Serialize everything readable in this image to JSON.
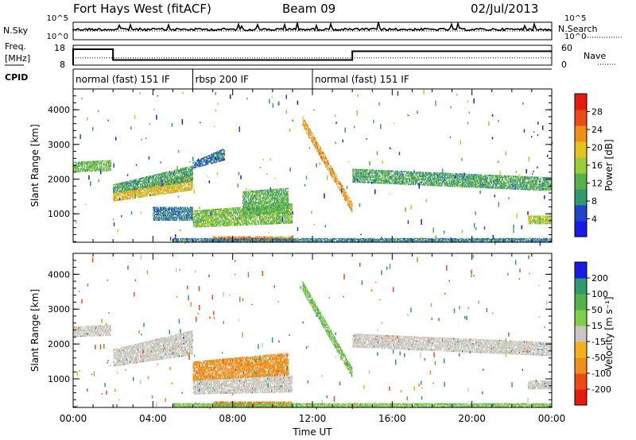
{
  "header": {
    "station": "Fort Hays West (fitACF)",
    "beam": "Beam 09",
    "date": "02/Jul/2013"
  },
  "chart_data": [
    {
      "type": "line",
      "panel": "noise",
      "left_label": "N.Sky",
      "right_label": "N.Search",
      "left_ticks": [
        "10^5",
        "10^0"
      ],
      "right_ticks": [
        "10^5",
        "10^0"
      ],
      "xlim": [
        0,
        24
      ]
    },
    {
      "type": "line",
      "panel": "frequency",
      "left_label": "Freq.",
      "left_unit": "[MHz]",
      "right_label": "Nave",
      "left_ticks": [
        18,
        8
      ],
      "right_ticks": [
        60,
        0
      ],
      "ylim_freq": [
        8,
        18
      ],
      "ylim_nave": [
        0,
        60
      ],
      "freq_steps": [
        {
          "t0": 0,
          "t1": 2,
          "v": 16
        },
        {
          "t0": 2,
          "t1": 14,
          "v": 10.6
        },
        {
          "t0": 14,
          "t1": 24,
          "v": 15
        }
      ],
      "nave_steps": [
        {
          "t0": 0,
          "t1": 24,
          "v": 22
        }
      ],
      "xlim": [
        0,
        24
      ]
    },
    {
      "type": "table",
      "panel": "cpid",
      "label": "CPID",
      "segments": [
        {
          "t0": 0,
          "t1": 6,
          "name": "normal (fast) 151 IF"
        },
        {
          "t0": 6,
          "t1": 12,
          "name": "rbsp 200 IF"
        },
        {
          "t0": 12,
          "t1": 24,
          "name": "normal (fast) 151 IF"
        }
      ],
      "xlim": [
        0,
        24
      ]
    },
    {
      "type": "heatmap",
      "panel": "power",
      "ylabel": "Slant Range [km]",
      "ylim": [
        180,
        4600
      ],
      "yticks": [
        1000,
        2000,
        3000,
        4000
      ],
      "xlim": [
        0,
        24
      ],
      "colorbar_label": "Power [dB]",
      "colorbar_ticks": [
        4,
        8,
        12,
        16,
        20,
        24,
        28
      ],
      "colorbar_range": [
        0,
        32
      ],
      "colormap": [
        "#1a1ae6",
        "#2244cc",
        "#2e9a6f",
        "#57b04a",
        "#9ccc3a",
        "#e6c21f",
        "#ef8f1c",
        "#ee4a15",
        "#e41b0e"
      ],
      "regions": [
        {
          "t0": 0,
          "t1": 1.9,
          "r0": 2200,
          "r1": 2500,
          "r1b": 2550,
          "v": 13
        },
        {
          "t0": 2,
          "t1": 6,
          "r0": 1350,
          "r1": 1600,
          "r1b": 2150,
          "v": 20
        },
        {
          "t0": 2,
          "t1": 6,
          "r0": 1600,
          "r1": 1850,
          "r1b": 2400,
          "v": 11
        },
        {
          "t0": 6,
          "t1": 7.6,
          "r0": 2300,
          "r1": 2500,
          "r1b": 2900,
          "v": 7
        },
        {
          "t0": 4,
          "t1": 6,
          "r0": 800,
          "r1": 1200,
          "r1b": 1200,
          "v": 8
        },
        {
          "t0": 6,
          "t1": 11,
          "r0": 600,
          "r1": 1100,
          "r1b": 1300,
          "v": 14
        },
        {
          "t0": 8.5,
          "t1": 10.8,
          "r0": 950,
          "r1": 1650,
          "r1b": 1750,
          "v": 12
        },
        {
          "t0": 7,
          "t1": 11,
          "r0": 180,
          "r1": 350,
          "r1b": 350,
          "v": 24
        },
        {
          "t0": 11.5,
          "t1": 14,
          "r0": 3500,
          "r1": 3800,
          "r1b": 1300,
          "v": 22
        },
        {
          "t0": 14,
          "t1": 24,
          "r0": 1900,
          "r1": 2300,
          "r1b": 2050,
          "v": 11
        },
        {
          "t0": 22.8,
          "t1": 24,
          "r0": 700,
          "r1": 950,
          "r1b": 950,
          "v": 16
        },
        {
          "t0": 5,
          "t1": 24,
          "r0": 180,
          "r1": 300,
          "r1b": 300,
          "v": 8
        }
      ]
    },
    {
      "type": "heatmap",
      "panel": "velocity",
      "ylabel": "Slant Range [km]",
      "xlabel": "Time UT",
      "ylim": [
        180,
        4600
      ],
      "yticks": [
        1000,
        2000,
        3000,
        4000
      ],
      "xlim": [
        0,
        24
      ],
      "xticks": [
        "00:00",
        "04:00",
        "08:00",
        "12:00",
        "16:00",
        "20:00",
        "00:00"
      ],
      "colorbar_label": "Velocity [m s⁻¹]",
      "colorbar_ticks": [
        200,
        100,
        50,
        15,
        -15,
        -50,
        -100,
        -200
      ],
      "colormap": [
        "#1a1ae6",
        "#2e9a6f",
        "#57b04a",
        "#7fd048",
        "#c8c8c0",
        "#ef8f1c",
        "#ee4a15",
        "#e41b0e",
        "#e41b0e"
      ],
      "regions": [
        {
          "t0": 0,
          "t1": 1.9,
          "r0": 2200,
          "r1": 2500,
          "r1b": 2550,
          "v": 0
        },
        {
          "t0": 2,
          "t1": 6,
          "r0": 1350,
          "r1": 1850,
          "r1b": 2400,
          "v": 0
        },
        {
          "t0": 6,
          "t1": 11,
          "r0": 550,
          "r1": 1000,
          "r1b": 1100,
          "v": 0
        },
        {
          "t0": 6,
          "t1": 10.8,
          "r0": 950,
          "r1": 1500,
          "r1b": 1750,
          "v": -45
        },
        {
          "t0": 7,
          "t1": 11,
          "r0": 180,
          "r1": 350,
          "r1b": 350,
          "v": -70
        },
        {
          "t0": 11.5,
          "t1": 14,
          "r0": 3500,
          "r1": 3800,
          "r1b": 1300,
          "v": 35
        },
        {
          "t0": 14,
          "t1": 24,
          "r0": 1900,
          "r1": 2300,
          "r1b": 2050,
          "v": 0
        },
        {
          "t0": 22.8,
          "t1": 24,
          "r0": 700,
          "r1": 950,
          "r1b": 950,
          "v": 0
        },
        {
          "t0": 5,
          "t1": 24,
          "r0": 180,
          "r1": 300,
          "r1b": 300,
          "v": 30
        }
      ]
    }
  ]
}
